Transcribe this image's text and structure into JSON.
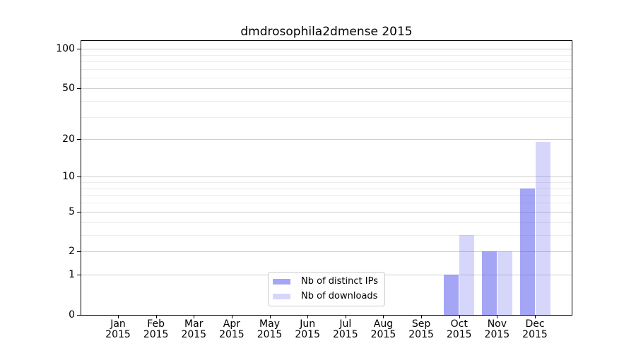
{
  "chart_data": {
    "type": "bar",
    "title": "dmdrosophila2dmense 2015",
    "year_label": "2015",
    "categories": [
      "Jan",
      "Feb",
      "Mar",
      "Apr",
      "May",
      "Jun",
      "Jul",
      "Aug",
      "Sep",
      "Oct",
      "Nov",
      "Dec"
    ],
    "series": [
      {
        "name": "Nb of distinct IPs",
        "color": "rgba(82,82,238,0.52)",
        "values": [
          0,
          0,
          0,
          0,
          0,
          0,
          0,
          0,
          0,
          1,
          2,
          8
        ]
      },
      {
        "name": "Nb of downloads",
        "color": "rgba(82,82,238,0.24)",
        "values": [
          0,
          0,
          0,
          0,
          0,
          0,
          0,
          0,
          0,
          3,
          2,
          19
        ]
      }
    ],
    "yscale": "log1p",
    "ylim": [
      0,
      115
    ],
    "y_major_ticks": [
      0,
      1,
      2,
      5,
      10,
      20,
      50,
      100
    ],
    "y_minor_ticks": [
      3,
      4,
      6,
      7,
      8,
      9,
      30,
      40,
      60,
      70,
      80,
      90
    ],
    "grid": true,
    "legend_position": "lower center",
    "colors": {
      "spine": "#000000",
      "major_grid": "#cfcfcf",
      "minor_grid": "#ececec",
      "background": "#ffffff",
      "text": "#000000"
    }
  }
}
